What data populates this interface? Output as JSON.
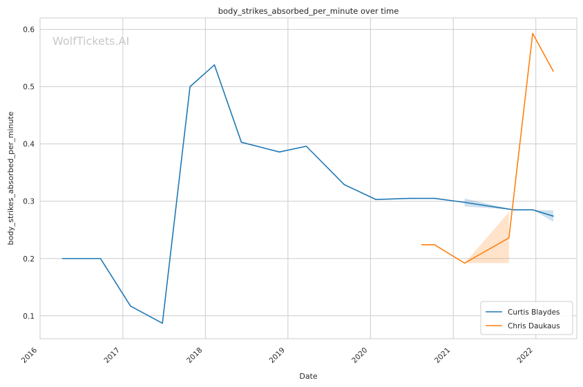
{
  "watermark": "WolfTickets.AI",
  "chart_data": {
    "type": "line",
    "title": "body_strikes_absorbed_per_minute over time",
    "xlabel": "Date",
    "ylabel": "body_strikes_absorbed_per_minute",
    "x_axis": "date",
    "xlim": [
      "2016-01-01",
      "2022-07-01"
    ],
    "ylim": [
      0.06,
      0.62
    ],
    "x_ticks": [
      "2016",
      "2017",
      "2018",
      "2019",
      "2020",
      "2021",
      "2022"
    ],
    "y_ticks": [
      "0.1",
      "0.2",
      "0.3",
      "0.4",
      "0.5",
      "0.6"
    ],
    "grid": true,
    "legend_position": "bottom-right",
    "series": [
      {
        "name": "Curtis Blaydes",
        "color": "#1f77b4",
        "points": [
          {
            "x": "2016-04-09",
            "y": 0.2
          },
          {
            "x": "2016-09-24",
            "y": 0.2
          },
          {
            "x": "2017-02-04",
            "y": 0.117
          },
          {
            "x": "2017-06-25",
            "y": 0.087
          },
          {
            "x": "2017-10-25",
            "y": 0.5
          },
          {
            "x": "2018-02-10",
            "y": 0.538
          },
          {
            "x": "2018-06-09",
            "y": 0.403
          },
          {
            "x": "2018-11-24",
            "y": 0.386
          },
          {
            "x": "2019-03-23",
            "y": 0.396
          },
          {
            "x": "2019-09-07",
            "y": 0.329
          },
          {
            "x": "2020-01-25",
            "y": 0.303
          },
          {
            "x": "2020-06-20",
            "y": 0.305
          },
          {
            "x": "2020-10-10",
            "y": 0.305
          },
          {
            "x": "2021-02-20",
            "y": 0.298
          },
          {
            "x": "2021-09-25",
            "y": 0.285
          },
          {
            "x": "2021-12-18",
            "y": 0.285
          },
          {
            "x": "2022-03-19",
            "y": 0.274
          }
        ],
        "ci": [
          {
            "x": "2021-02-20",
            "low": 0.291,
            "high": 0.305
          },
          {
            "x": "2021-09-25",
            "low": 0.285,
            "high": 0.285
          },
          {
            "x": "2021-12-18",
            "low": 0.285,
            "high": 0.285
          },
          {
            "x": "2022-03-19",
            "low": 0.264,
            "high": 0.284
          }
        ]
      },
      {
        "name": "Chris Daukaus",
        "color": "#ff7f0e",
        "points": [
          {
            "x": "2020-08-15",
            "y": 0.224
          },
          {
            "x": "2020-10-10",
            "y": 0.224
          },
          {
            "x": "2021-02-20",
            "y": 0.192
          },
          {
            "x": "2021-09-04",
            "y": 0.236
          },
          {
            "x": "2021-12-18",
            "y": 0.593
          },
          {
            "x": "2022-03-19",
            "y": 0.527
          }
        ],
        "ci": [
          {
            "x": "2021-02-20",
            "low": 0.192,
            "high": 0.192
          },
          {
            "x": "2021-09-04",
            "low": 0.192,
            "high": 0.281
          }
        ]
      }
    ]
  }
}
